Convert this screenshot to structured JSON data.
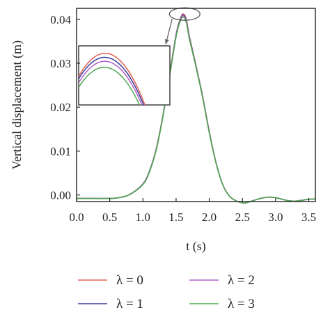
{
  "chart_data": {
    "type": "line",
    "title": "",
    "xlabel": "t (s)",
    "ylabel": "Vertical displacement (m)",
    "xlim": [
      0.0,
      3.6
    ],
    "ylim": [
      -0.0015,
      0.0425
    ],
    "x_ticks": [
      "0.0",
      "0.5",
      "1.0",
      "1.5",
      "2.0",
      "2.5",
      "3.0",
      "3.5"
    ],
    "y_ticks": [
      "0.00",
      "0.01",
      "0.02",
      "0.03",
      "0.04"
    ],
    "grid": false,
    "legend_position": "bottom",
    "x": [
      0.0,
      0.2,
      0.4,
      0.6,
      0.8,
      1.0,
      1.1,
      1.2,
      1.3,
      1.4,
      1.5,
      1.55,
      1.6,
      1.65,
      1.7,
      1.8,
      1.9,
      2.0,
      2.1,
      2.2,
      2.3,
      2.4,
      2.5,
      2.55,
      2.6,
      2.7,
      2.8,
      2.9,
      3.0,
      3.1,
      3.2,
      3.3,
      3.4,
      3.5,
      3.6
    ],
    "series": [
      {
        "name": "λ = 0",
        "color": "#e06050",
        "values": [
          -0.0008,
          -0.0008,
          -0.0008,
          -0.0007,
          0.0001,
          0.0025,
          0.0055,
          0.0105,
          0.018,
          0.0272,
          0.0365,
          0.0395,
          0.0412,
          0.0402,
          0.0362,
          0.0295,
          0.0225,
          0.0145,
          0.0075,
          0.0025,
          -0.0002,
          -0.0013,
          -0.0018,
          -0.0018,
          -0.0016,
          -0.0011,
          -0.0007,
          -0.0005,
          -0.0006,
          -0.001,
          -0.0013,
          -0.0014,
          -0.0012,
          -0.001,
          -0.0009
        ]
      },
      {
        "name": "λ = 1",
        "color": "#3a3aa0",
        "values": [
          -0.0008,
          -0.0008,
          -0.0008,
          -0.0007,
          0.0001,
          0.0025,
          0.0055,
          0.0104,
          0.0179,
          0.0271,
          0.0364,
          0.0394,
          0.041,
          0.04,
          0.036,
          0.0294,
          0.0224,
          0.0144,
          0.0075,
          0.0025,
          -0.0002,
          -0.0013,
          -0.0018,
          -0.0018,
          -0.0016,
          -0.0011,
          -0.0007,
          -0.0005,
          -0.0006,
          -0.001,
          -0.0013,
          -0.0014,
          -0.0012,
          -0.001,
          -0.0009
        ]
      },
      {
        "name": "λ = 2",
        "color": "#b060c8",
        "values": [
          -0.0008,
          -0.0008,
          -0.0008,
          -0.0007,
          0.0001,
          0.0024,
          0.0054,
          0.0103,
          0.0178,
          0.027,
          0.0362,
          0.0392,
          0.0408,
          0.0398,
          0.0358,
          0.0293,
          0.0223,
          0.0143,
          0.0074,
          0.0025,
          -0.0002,
          -0.0013,
          -0.0018,
          -0.0018,
          -0.0016,
          -0.0011,
          -0.0007,
          -0.0005,
          -0.0006,
          -0.001,
          -0.0013,
          -0.0014,
          -0.0012,
          -0.001,
          -0.0009
        ]
      },
      {
        "name": "λ = 3",
        "color": "#50a850",
        "values": [
          -0.0008,
          -0.0008,
          -0.0008,
          -0.0007,
          0.0001,
          0.0024,
          0.0053,
          0.0102,
          0.0177,
          0.0268,
          0.036,
          0.039,
          0.0405,
          0.0395,
          0.0356,
          0.0291,
          0.0222,
          0.0142,
          0.0074,
          0.0024,
          -0.0002,
          -0.0013,
          -0.0018,
          -0.0018,
          -0.0016,
          -0.0011,
          -0.0007,
          -0.0005,
          -0.0006,
          -0.001,
          -0.0013,
          -0.0014,
          -0.0012,
          -0.001,
          -0.0009
        ]
      }
    ]
  }
}
